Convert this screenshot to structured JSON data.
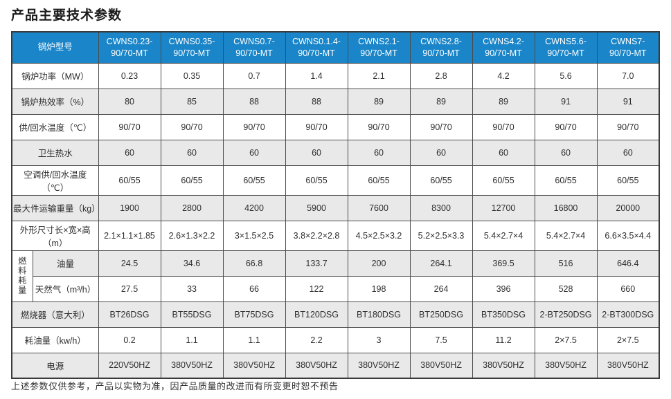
{
  "page": {
    "title": "产品主要技术参数",
    "footer_note": "上述参数仅供参考，产品以实物为准，因产品质量的改进而有所变更时恕不预告"
  },
  "colors": {
    "header_bg": "#1a85c8",
    "header_text": "#ffffff",
    "shaded_row_bg": "#e9e9e9",
    "border": "#4b4b4b"
  },
  "table": {
    "corner_label": "锅炉型号",
    "models": [
      "CWNS0.23-\n90/70-MT",
      "CWNS0.35-\n90/70-MT",
      "CWNS0.7-\n90/70-MT",
      "CWNS0.1.4-\n90/70-MT",
      "CWNS2.1-\n90/70-MT",
      "CWNS2.8-\n90/70-MT",
      "CWNS4.2-\n90/70-MT",
      "CWNS5.6-\n90/70-MT",
      "CWNS7-\n90/70-MT"
    ],
    "fuel_group_label": "燃料耗量",
    "rows": [
      {
        "label": "锅炉功率（MW）",
        "shaded": false,
        "values": [
          "0.23",
          "0.35",
          "0.7",
          "1.4",
          "2.1",
          "2.8",
          "4.2",
          "5.6",
          "7.0"
        ]
      },
      {
        "label": "锅炉热效率（%）",
        "shaded": true,
        "values": [
          "80",
          "85",
          "88",
          "88",
          "89",
          "89",
          "89",
          "91",
          "91"
        ]
      },
      {
        "label": "供/回水温度（℃）",
        "shaded": false,
        "values": [
          "90/70",
          "90/70",
          "90/70",
          "90/70",
          "90/70",
          "90/70",
          "90/70",
          "90/70",
          "90/70"
        ]
      },
      {
        "label": "卫生热水",
        "shaded": true,
        "values": [
          "60",
          "60",
          "60",
          "60",
          "60",
          "60",
          "60",
          "60",
          "60"
        ]
      },
      {
        "label": "空调供/回水温度（℃）",
        "shaded": false,
        "values": [
          "60/55",
          "60/55",
          "60/55",
          "60/55",
          "60/55",
          "60/55",
          "60/55",
          "60/55",
          "60/55"
        ]
      },
      {
        "label": "最大件运输重量（kg）",
        "shaded": true,
        "values": [
          "1900",
          "2800",
          "4200",
          "5900",
          "7600",
          "8300",
          "12700",
          "16800",
          "20000"
        ]
      },
      {
        "label": "外形尺寸长×宽×高（m）",
        "shaded": false,
        "values": [
          "2.1×1.1×1.85",
          "2.6×1.3×2.2",
          "3×1.5×2.5",
          "3.8×2.2×2.8",
          "4.5×2.5×3.2",
          "5.2×2.5×3.3",
          "5.4×2.7×4",
          "5.4×2.7×4",
          "6.6×3.5×4.4"
        ]
      },
      {
        "label": "油量",
        "shaded": true,
        "in_group": true,
        "group_start": true,
        "values": [
          "24.5",
          "34.6",
          "66.8",
          "133.7",
          "200",
          "264.1",
          "369.5",
          "516",
          "646.4"
        ]
      },
      {
        "label": "天然气（m³/h）",
        "shaded": false,
        "in_group": true,
        "values": [
          "27.5",
          "33",
          "66",
          "122",
          "198",
          "264",
          "396",
          "528",
          "660"
        ]
      },
      {
        "label": "燃烧器（意大利）",
        "shaded": true,
        "values": [
          "BT26DSG",
          "BT55DSG",
          "BT75DSG",
          "BT120DSG",
          "BT180DSG",
          "BT250DSG",
          "BT350DSG",
          "2-BT250DSG",
          "2-BT300DSG"
        ]
      },
      {
        "label": "耗油量（kw/h）",
        "shaded": false,
        "values": [
          "0.2",
          "1.1",
          "1.1",
          "2.2",
          "3",
          "7.5",
          "11.2",
          "2×7.5",
          "2×7.5"
        ]
      },
      {
        "label": "电源",
        "shaded": true,
        "values": [
          "220V50HZ",
          "380V50HZ",
          "380V50HZ",
          "380V50HZ",
          "380V50HZ",
          "380V50HZ",
          "380V50HZ",
          "380V50HZ",
          "380V50HZ"
        ]
      }
    ]
  }
}
